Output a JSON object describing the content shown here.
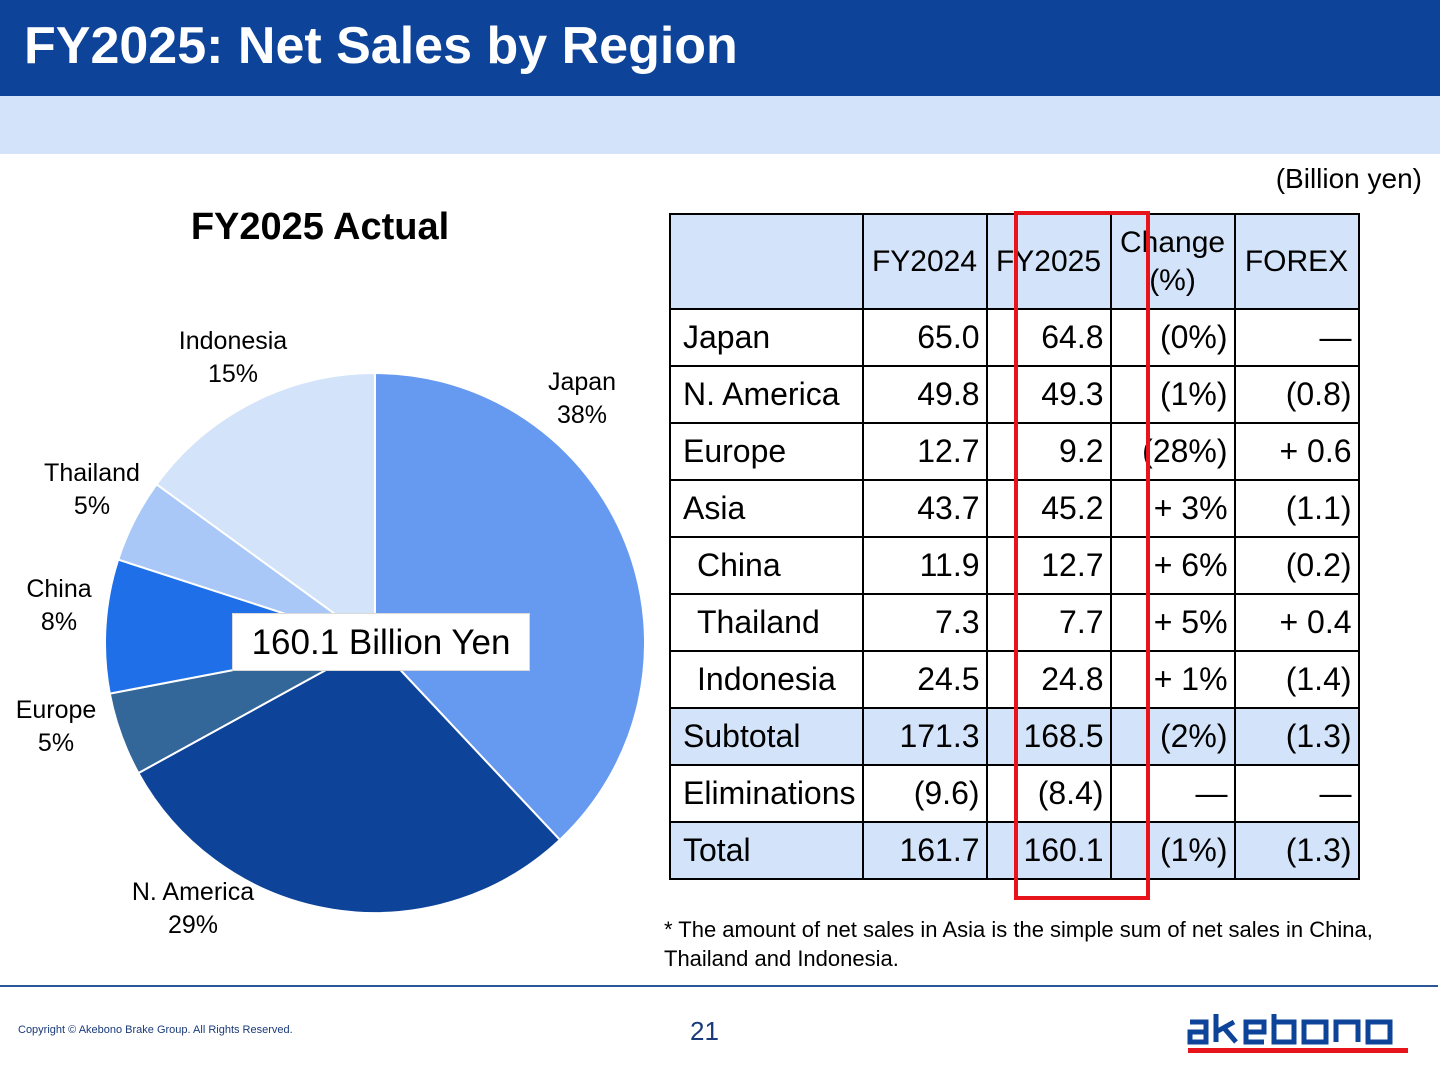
{
  "slide": {
    "title": "FY2025: Net Sales by Region",
    "unit": "(Billion yen)",
    "footnote": "* The amount of net sales in Asia is the simple sum of net sales in China, Thailand and Indonesia.",
    "copyright": "Copyright © Akebono Brake Group. All Rights Reserved.",
    "page_number": "21",
    "logo_text": "akebono"
  },
  "colors": {
    "header": "#0d449a",
    "band": "#d3e3f9",
    "highlight_border": "#e8141c",
    "logo_red": "#e8141c",
    "logo_blue": "#0d449a"
  },
  "chart_data": {
    "type": "pie",
    "title": "FY2025 Actual",
    "center_label": "160.1 Billion Yen",
    "slices": [
      {
        "label": "Japan",
        "pct_label": "38%",
        "value": 38,
        "color": "#6699f0"
      },
      {
        "label": "N. America",
        "pct_label": "29%",
        "value": 29,
        "color": "#0d449a"
      },
      {
        "label": "Europe",
        "pct_label": "5%",
        "value": 5,
        "color": "#336699"
      },
      {
        "label": "China",
        "pct_label": "8%",
        "value": 8,
        "color": "#1f6fe8"
      },
      {
        "label": "Thailand",
        "pct_label": "5%",
        "value": 5,
        "color": "#a9c7f7"
      },
      {
        "label": "Indonesia",
        "pct_label": "15%",
        "value": 15,
        "color": "#d3e3f9"
      }
    ]
  },
  "table": {
    "headers": [
      "",
      "FY2024",
      "FY2025",
      "Change\n(%)",
      "FOREX"
    ],
    "rows": [
      {
        "label": "Japan",
        "fy2024": "65.0",
        "fy2025": "64.8",
        "change": "(0%)",
        "forex": "―",
        "type": "main"
      },
      {
        "label": "N. America",
        "fy2024": "49.8",
        "fy2025": "49.3",
        "change": "(1%)",
        "forex": "(0.8)",
        "type": "main"
      },
      {
        "label": "Europe",
        "fy2024": "12.7",
        "fy2025": "9.2",
        "change": "(28%)",
        "forex": "+ 0.6",
        "type": "main"
      },
      {
        "label": "Asia",
        "fy2024": "43.7",
        "fy2025": "45.2",
        "change": "+ 3%",
        "forex": "(1.1)",
        "type": "main"
      },
      {
        "label": "China",
        "fy2024": "11.9",
        "fy2025": "12.7",
        "change": "+ 6%",
        "forex": "(0.2)",
        "type": "sub"
      },
      {
        "label": "Thailand",
        "fy2024": "7.3",
        "fy2025": "7.7",
        "change": "+ 5%",
        "forex": "+ 0.4",
        "type": "sub"
      },
      {
        "label": "Indonesia",
        "fy2024": "24.5",
        "fy2025": "24.8",
        "change": "+ 1%",
        "forex": "(1.4)",
        "type": "sub"
      },
      {
        "label": "Subtotal",
        "fy2024": "171.3",
        "fy2025": "168.5",
        "change": "(2%)",
        "forex": "(1.3)",
        "type": "highlight"
      },
      {
        "label": "Eliminations",
        "fy2024": "(9.6)",
        "fy2025": "(8.4)",
        "change": "―",
        "forex": "―",
        "type": "main"
      },
      {
        "label": "Total",
        "fy2024": "161.7",
        "fy2025": "160.1",
        "change": "(1%)",
        "forex": "(1.3)",
        "type": "highlight"
      }
    ]
  }
}
